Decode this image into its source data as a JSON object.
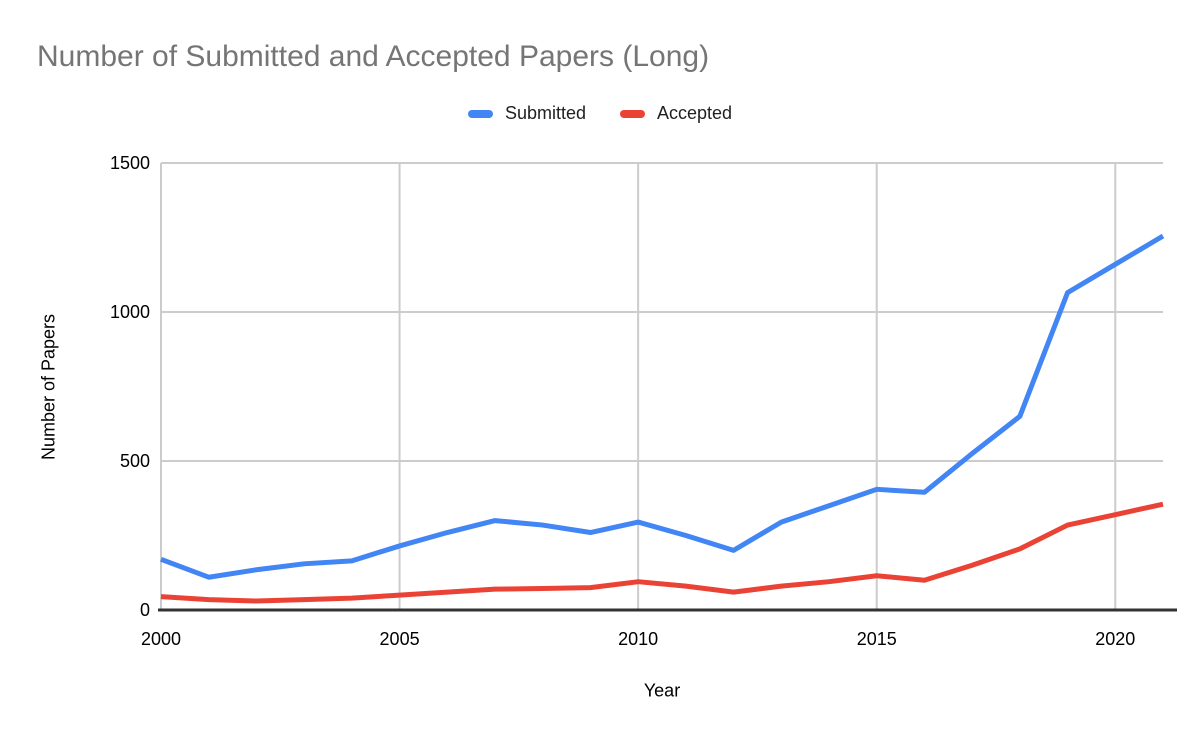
{
  "title": "Number of Submitted and Accepted Papers (Long)",
  "legend": {
    "items": [
      {
        "label": "Submitted",
        "color": "#4285f4"
      },
      {
        "label": "Accepted",
        "color": "#ea4335"
      }
    ]
  },
  "colors": {
    "submitted": "#4285f4",
    "accepted": "#ea4335",
    "title_text": "#757575",
    "axis_text": "#000000",
    "gridline": "#cccccc",
    "axis_line": "#333333",
    "background": "#ffffff"
  },
  "chart_data": {
    "type": "line",
    "title": "Number of Submitted and Accepted Papers (Long)",
    "xlabel": "Year",
    "ylabel": "Number of Papers",
    "x": [
      2000,
      2001,
      2002,
      2003,
      2004,
      2005,
      2006,
      2007,
      2008,
      2009,
      2010,
      2011,
      2012,
      2013,
      2014,
      2015,
      2016,
      2017,
      2018,
      2019,
      2020,
      2021
    ],
    "series": [
      {
        "name": "Submitted",
        "color": "#4285f4",
        "values": [
          170,
          110,
          135,
          155,
          165,
          215,
          260,
          300,
          285,
          260,
          295,
          250,
          200,
          295,
          350,
          405,
          395,
          525,
          650,
          1065,
          1160,
          1255
        ]
      },
      {
        "name": "Accepted",
        "color": "#ea4335",
        "values": [
          45,
          35,
          30,
          35,
          40,
          50,
          60,
          70,
          72,
          75,
          95,
          80,
          60,
          80,
          95,
          115,
          100,
          150,
          205,
          285,
          320,
          355
        ]
      }
    ],
    "xlim": [
      2000,
      2021
    ],
    "ylim": [
      0,
      1500
    ],
    "xticks": [
      2000,
      2005,
      2010,
      2015,
      2020
    ],
    "yticks": [
      0,
      500,
      1000,
      1500
    ],
    "grid": true,
    "legend_position": "top"
  }
}
